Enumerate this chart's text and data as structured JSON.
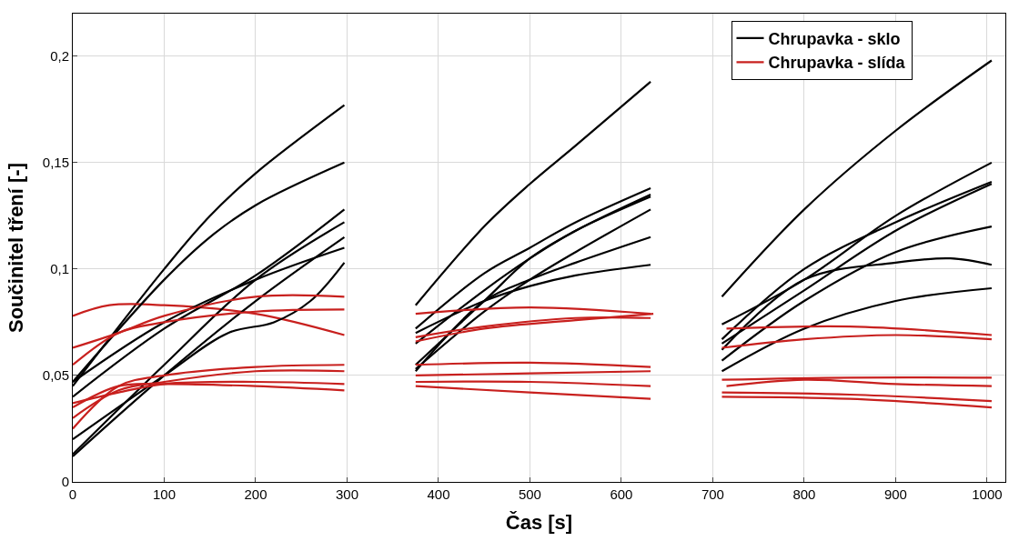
{
  "chart_data": {
    "type": "line",
    "xlabel": "Čas [s]",
    "ylabel": "Součinitel tření [-]",
    "xlim": [
      0,
      1020
    ],
    "xticks": [
      0,
      100,
      200,
      300,
      400,
      500,
      600,
      700,
      800,
      900,
      1000
    ],
    "ylim": [
      0,
      0.22
    ],
    "yticks": [
      0,
      {
        "value": 0.05,
        "label": "0,05"
      },
      {
        "value": 0.1,
        "label": "0,1"
      },
      {
        "value": 0.15,
        "label": "0,15"
      },
      {
        "value": 0.2,
        "label": "0,2"
      }
    ],
    "grid": true,
    "legend": "top right",
    "marker": "none",
    "line_style": "solid",
    "series": [
      {
        "name": "Chrupavka - sklo",
        "color": "#000000",
        "x": [
          0,
          100,
          150,
          200,
          297
        ],
        "values": [
          0.045,
          0.1,
          0.125,
          0.145,
          0.177
        ]
      },
      {
        "name": "Chrupavka - slída",
        "color": "#c8201e",
        "x": [
          0,
          40,
          100,
          200,
          297
        ],
        "values": [
          0.078,
          0.083,
          0.083,
          0.079,
          0.069
        ]
      },
      {
        "color": "#000000",
        "x": [
          0,
          100,
          150,
          200,
          297
        ],
        "values": [
          0.047,
          0.095,
          0.115,
          0.13,
          0.15
        ]
      },
      {
        "color": "#000000",
        "x": [
          0,
          100,
          200,
          297
        ],
        "values": [
          0.04,
          0.072,
          0.097,
          0.128
        ]
      },
      {
        "color": "#000000",
        "x": [
          0,
          100,
          200,
          297
        ],
        "values": [
          0.047,
          0.075,
          0.095,
          0.11
        ]
      },
      {
        "color": "#000000",
        "x": [
          0,
          100,
          200,
          297
        ],
        "values": [
          0.013,
          0.055,
          0.095,
          0.122
        ]
      },
      {
        "color": "#000000",
        "x": [
          0,
          100,
          200,
          297
        ],
        "values": [
          0.012,
          0.05,
          0.085,
          0.115
        ]
      },
      {
        "color": "#000000",
        "x": [
          0,
          100,
          170,
          220,
          260,
          297
        ],
        "values": [
          0.02,
          0.05,
          0.07,
          0.075,
          0.085,
          0.103
        ]
      },
      {
        "color": "#000000",
        "x": [
          375,
          450,
          500,
          550,
          632
        ],
        "values": [
          0.083,
          0.12,
          0.14,
          0.158,
          0.188
        ]
      },
      {
        "color": "#000000",
        "x": [
          375,
          450,
          500,
          550,
          632
        ],
        "values": [
          0.072,
          0.098,
          0.11,
          0.122,
          0.138
        ]
      },
      {
        "color": "#000000",
        "x": [
          375,
          450,
          500,
          550,
          632
        ],
        "values": [
          0.065,
          0.09,
          0.105,
          0.118,
          0.134
        ]
      },
      {
        "color": "#000000",
        "x": [
          375,
          450,
          500,
          550,
          632
        ],
        "values": [
          0.055,
          0.085,
          0.105,
          0.118,
          0.135
        ]
      },
      {
        "color": "#000000",
        "x": [
          375,
          450,
          500,
          550,
          632
        ],
        "values": [
          0.053,
          0.08,
          0.095,
          0.108,
          0.128
        ]
      },
      {
        "color": "#000000",
        "x": [
          375,
          450,
          500,
          550,
          632
        ],
        "values": [
          0.052,
          0.085,
          0.095,
          0.103,
          0.115
        ]
      },
      {
        "color": "#000000",
        "x": [
          375,
          450,
          500,
          550,
          632
        ],
        "values": [
          0.07,
          0.085,
          0.092,
          0.097,
          0.102
        ]
      },
      {
        "color": "#000000",
        "x": [
          710,
          800,
          900,
          1005
        ],
        "values": [
          0.087,
          0.128,
          0.165,
          0.198
        ]
      },
      {
        "color": "#000000",
        "x": [
          710,
          800,
          900,
          1005
        ],
        "values": [
          0.074,
          0.095,
          0.125,
          0.15
        ]
      },
      {
        "color": "#000000",
        "x": [
          710,
          800,
          900,
          1005
        ],
        "values": [
          0.067,
          0.1,
          0.122,
          0.141
        ]
      },
      {
        "color": "#000000",
        "x": [
          710,
          800,
          900,
          1005
        ],
        "values": [
          0.065,
          0.09,
          0.118,
          0.14
        ]
      },
      {
        "color": "#000000",
        "x": [
          710,
          800,
          900,
          1005
        ],
        "values": [
          0.057,
          0.085,
          0.108,
          0.12
        ]
      },
      {
        "color": "#000000",
        "x": [
          710,
          800,
          900,
          960,
          1005
        ],
        "values": [
          0.062,
          0.095,
          0.103,
          0.105,
          0.102
        ]
      },
      {
        "color": "#000000",
        "x": [
          710,
          800,
          900,
          1005
        ],
        "values": [
          0.052,
          0.072,
          0.085,
          0.091
        ]
      },
      {
        "color": "#c8201e",
        "x": [
          0,
          50,
          100,
          200,
          297
        ],
        "values": [
          0.063,
          0.07,
          0.078,
          0.087,
          0.087
        ]
      },
      {
        "color": "#c8201e",
        "x": [
          0,
          50,
          100,
          200,
          297
        ],
        "values": [
          0.055,
          0.07,
          0.075,
          0.08,
          0.081
        ]
      },
      {
        "color": "#c8201e",
        "x": [
          0,
          50,
          100,
          200,
          297
        ],
        "values": [
          0.025,
          0.045,
          0.05,
          0.054,
          0.055
        ]
      },
      {
        "color": "#c8201e",
        "x": [
          0,
          50,
          100,
          200,
          297
        ],
        "values": [
          0.03,
          0.043,
          0.047,
          0.052,
          0.052
        ]
      },
      {
        "color": "#c8201e",
        "x": [
          0,
          50,
          100,
          200,
          297
        ],
        "values": [
          0.037,
          0.042,
          0.046,
          0.047,
          0.046
        ]
      },
      {
        "color": "#c8201e",
        "x": [
          0,
          50,
          100,
          200,
          297
        ],
        "values": [
          0.035,
          0.045,
          0.046,
          0.045,
          0.043
        ]
      },
      {
        "color": "#c8201e",
        "x": [
          375,
          500,
          632
        ],
        "values": [
          0.079,
          0.082,
          0.079
        ]
      },
      {
        "color": "#c8201e",
        "x": [
          375,
          450,
          550,
          632
        ],
        "values": [
          0.068,
          0.073,
          0.077,
          0.077
        ]
      },
      {
        "color": "#c8201e",
        "x": [
          375,
          450,
          550,
          635
        ],
        "values": [
          0.066,
          0.072,
          0.076,
          0.079
        ]
      },
      {
        "color": "#c8201e",
        "x": [
          375,
          500,
          632
        ],
        "values": [
          0.055,
          0.056,
          0.054
        ]
      },
      {
        "color": "#c8201e",
        "x": [
          375,
          500,
          632
        ],
        "values": [
          0.05,
          0.051,
          0.052
        ]
      },
      {
        "color": "#c8201e",
        "x": [
          375,
          500,
          632
        ],
        "values": [
          0.047,
          0.047,
          0.045
        ]
      },
      {
        "color": "#c8201e",
        "x": [
          375,
          500,
          632
        ],
        "values": [
          0.045,
          0.042,
          0.039
        ]
      },
      {
        "color": "#c8201e",
        "x": [
          715,
          850,
          1005
        ],
        "values": [
          0.072,
          0.073,
          0.069
        ]
      },
      {
        "color": "#c8201e",
        "x": [
          710,
          800,
          900,
          1005
        ],
        "values": [
          0.063,
          0.067,
          0.069,
          0.067
        ]
      },
      {
        "color": "#c8201e",
        "x": [
          710,
          850,
          1005
        ],
        "values": [
          0.048,
          0.049,
          0.049
        ]
      },
      {
        "color": "#c8201e",
        "x": [
          715,
          800,
          900,
          1005
        ],
        "values": [
          0.045,
          0.048,
          0.046,
          0.045
        ]
      },
      {
        "color": "#c8201e",
        "x": [
          710,
          850,
          1005
        ],
        "values": [
          0.042,
          0.041,
          0.038
        ]
      },
      {
        "color": "#c8201e",
        "x": [
          710,
          850,
          1005
        ],
        "values": [
          0.04,
          0.039,
          0.035
        ]
      }
    ]
  }
}
